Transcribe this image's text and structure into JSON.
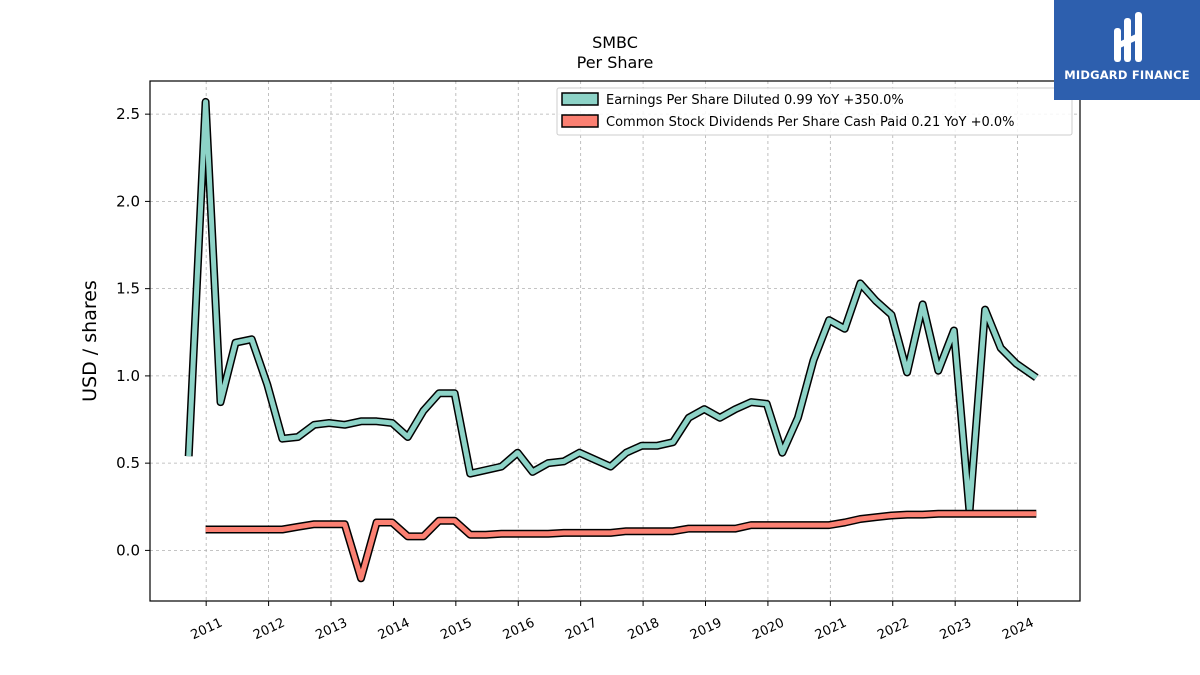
{
  "logo": {
    "text": "MIDGARD FINANCE",
    "color": "#2d5fae"
  },
  "chart_data": {
    "type": "line",
    "title": "SMBC",
    "subtitle": "Per  Share",
    "ylabel": "USD / shares",
    "xlabel": "",
    "ylim": [
      -0.29,
      2.69
    ],
    "xlim": [
      2010.1,
      2025.0
    ],
    "yticks": [
      0.0,
      0.5,
      1.0,
      1.5,
      2.0,
      2.5
    ],
    "ytick_labels": [
      "0.0",
      "0.5",
      "1.0",
      "1.5",
      "2.0",
      "2.5"
    ],
    "xticks": [
      2011,
      2012,
      2013,
      2014,
      2015,
      2016,
      2017,
      2018,
      2019,
      2020,
      2021,
      2022,
      2023,
      2024
    ],
    "xtick_labels": [
      "2011",
      "2012",
      "2013",
      "2014",
      "2015",
      "2016",
      "2017",
      "2018",
      "2019",
      "2020",
      "2021",
      "2022",
      "2023",
      "2024"
    ],
    "grid": true,
    "legend_position": "top-right",
    "series": [
      {
        "name": "Earnings Per Share Diluted  0.99 YoY +350.0%",
        "color": "#8dd3c7",
        "x": [
          2010.72,
          2010.99,
          2011.23,
          2011.47,
          2011.73,
          2011.98,
          2012.22,
          2012.47,
          2012.73,
          2012.97,
          2013.22,
          2013.48,
          2013.73,
          2013.98,
          2014.23,
          2014.48,
          2014.73,
          2014.98,
          2015.23,
          2015.48,
          2015.73,
          2015.99,
          2016.23,
          2016.48,
          2016.73,
          2016.98,
          2017.23,
          2017.48,
          2017.73,
          2017.98,
          2018.23,
          2018.48,
          2018.73,
          2018.98,
          2019.23,
          2019.48,
          2019.73,
          2019.98,
          2020.23,
          2020.48,
          2020.73,
          2020.98,
          2021.23,
          2021.48,
          2021.73,
          2021.98,
          2022.23,
          2022.48,
          2022.73,
          2022.98,
          2023.23,
          2023.48,
          2023.73,
          2023.98,
          2024.3
        ],
        "values": [
          0.54,
          2.57,
          0.85,
          1.19,
          1.21,
          0.95,
          0.64,
          0.65,
          0.72,
          0.73,
          0.72,
          0.74,
          0.74,
          0.73,
          0.65,
          0.8,
          0.9,
          0.9,
          0.44,
          0.46,
          0.48,
          0.56,
          0.45,
          0.5,
          0.51,
          0.56,
          0.52,
          0.48,
          0.56,
          0.6,
          0.6,
          0.62,
          0.76,
          0.81,
          0.76,
          0.81,
          0.85,
          0.84,
          0.56,
          0.76,
          1.09,
          1.32,
          1.27,
          1.53,
          1.43,
          1.35,
          1.02,
          1.41,
          1.03,
          1.26,
          0.22,
          1.38,
          1.16,
          1.07,
          0.99
        ]
      },
      {
        "name": "Common Stock Dividends Per Share Cash Paid  0.21 YoY +0.0%",
        "color": "#fb8072",
        "x": [
          2010.99,
          2011.23,
          2011.47,
          2011.73,
          2011.98,
          2012.22,
          2012.47,
          2012.73,
          2012.97,
          2013.22,
          2013.48,
          2013.73,
          2013.98,
          2014.23,
          2014.48,
          2014.73,
          2014.98,
          2015.23,
          2015.48,
          2015.73,
          2015.99,
          2016.23,
          2016.48,
          2016.73,
          2016.98,
          2017.23,
          2017.48,
          2017.73,
          2017.98,
          2018.23,
          2018.48,
          2018.73,
          2018.98,
          2019.23,
          2019.48,
          2019.73,
          2019.98,
          2020.23,
          2020.48,
          2020.73,
          2020.98,
          2021.23,
          2021.48,
          2021.73,
          2021.98,
          2022.23,
          2022.48,
          2022.73,
          2022.98,
          2023.23,
          2023.48,
          2023.73,
          2023.98,
          2024.3
        ],
        "values": [
          0.12,
          0.12,
          0.12,
          0.12,
          0.12,
          0.12,
          0.135,
          0.15,
          0.15,
          0.15,
          -0.16,
          0.16,
          0.16,
          0.08,
          0.08,
          0.17,
          0.17,
          0.09,
          0.09,
          0.095,
          0.095,
          0.095,
          0.095,
          0.1,
          0.1,
          0.1,
          0.1,
          0.11,
          0.11,
          0.11,
          0.11,
          0.125,
          0.125,
          0.125,
          0.125,
          0.145,
          0.145,
          0.145,
          0.145,
          0.145,
          0.145,
          0.16,
          0.18,
          0.19,
          0.2,
          0.205,
          0.205,
          0.21,
          0.21,
          0.21,
          0.21,
          0.21,
          0.21,
          0.21
        ]
      }
    ]
  }
}
